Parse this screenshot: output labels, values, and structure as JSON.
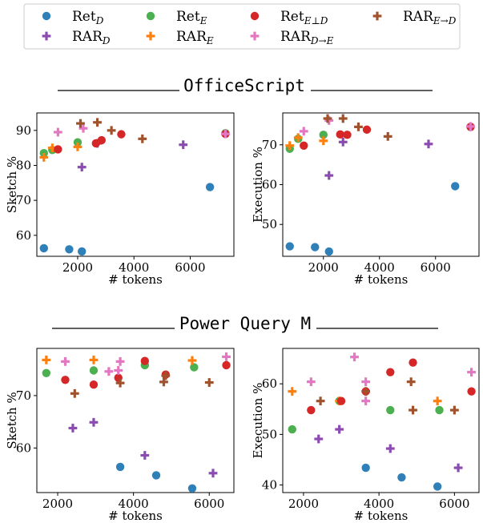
{
  "legend": {
    "items": [
      {
        "key": "ret_d",
        "base": "Ret",
        "sub": "D",
        "marker": "circle",
        "color": "#2f7fb8"
      },
      {
        "key": "rar_d",
        "base": "RAR",
        "sub": "D",
        "marker": "plus",
        "color": "#8b4bb0"
      },
      {
        "key": "ret_e",
        "base": "Ret",
        "sub": "E",
        "marker": "circle",
        "color": "#4caf50"
      },
      {
        "key": "rar_e",
        "base": "RAR",
        "sub": "E",
        "marker": "plus",
        "color": "#ff7f0e"
      },
      {
        "key": "ret_ed",
        "base": "Ret",
        "sub": "E⊥D",
        "marker": "circle",
        "color": "#d62728"
      },
      {
        "key": "rar_de",
        "base": "RAR",
        "sub": "D→E",
        "marker": "plus",
        "color": "#e377c2"
      },
      {
        "key": "rar_ed",
        "base": "RAR",
        "sub": "E→D",
        "marker": "plus",
        "color": "#a0522d"
      }
    ]
  },
  "sections": [
    {
      "title": "OfficeScript"
    },
    {
      "title": "Power Query M"
    }
  ],
  "chart_data": [
    {
      "type": "scatter",
      "section": "OfficeScript",
      "xlabel": "# tokens",
      "ylabel": "Sketch %",
      "xlim": [
        550,
        7550
      ],
      "ylim": [
        54,
        95
      ],
      "xticks": [
        2000,
        4000,
        6000
      ],
      "yticks": [
        60,
        70,
        80,
        90
      ],
      "grid": false,
      "series": [
        {
          "key": "ret_d",
          "points": [
            [
              800,
              56.3
            ],
            [
              1700,
              56.0
            ],
            [
              2150,
              55.4
            ],
            [
              6700,
              73.8
            ]
          ]
        },
        {
          "key": "rar_d",
          "points": [
            [
              2150,
              79.5
            ],
            [
              2700,
              86.3
            ],
            [
              5750,
              85.9
            ]
          ]
        },
        {
          "key": "ret_e",
          "points": [
            [
              800,
              83.5
            ],
            [
              1100,
              84.4
            ],
            [
              2000,
              86.6
            ],
            [
              7250,
              89.2
            ]
          ]
        },
        {
          "key": "rar_e",
          "points": [
            [
              800,
              82.3
            ],
            [
              1100,
              85.0
            ],
            [
              2000,
              85.3
            ]
          ]
        },
        {
          "key": "ret_ed",
          "points": [
            [
              1300,
              84.6
            ],
            [
              2650,
              86.3
            ],
            [
              2850,
              87.2
            ],
            [
              3550,
              88.9
            ],
            [
              7250,
              89.0
            ]
          ]
        },
        {
          "key": "rar_de",
          "points": [
            [
              1300,
              89.5
            ],
            [
              2200,
              90.6
            ],
            [
              7250,
              89.0
            ]
          ]
        },
        {
          "key": "rar_ed",
          "points": [
            [
              2100,
              92.0
            ],
            [
              2700,
              92.3
            ],
            [
              3200,
              90.0
            ],
            [
              4300,
              87.6
            ]
          ]
        }
      ]
    },
    {
      "type": "scatter",
      "section": "OfficeScript",
      "xlabel": "# tokens",
      "ylabel": "Execution %",
      "xlim": [
        550,
        7550
      ],
      "ylim": [
        42,
        78
      ],
      "xticks": [
        2000,
        4000,
        6000
      ],
      "yticks": [
        50,
        60,
        70
      ],
      "grid": false,
      "series": [
        {
          "key": "ret_d",
          "points": [
            [
              800,
              44.5
            ],
            [
              1700,
              44.3
            ],
            [
              2200,
              43.2
            ],
            [
              6700,
              59.6
            ]
          ]
        },
        {
          "key": "rar_d",
          "points": [
            [
              2200,
              62.3
            ],
            [
              2700,
              70.7
            ],
            [
              5750,
              70.2
            ]
          ]
        },
        {
          "key": "ret_e",
          "points": [
            [
              800,
              69.0
            ],
            [
              1100,
              71.5
            ],
            [
              2000,
              72.5
            ],
            [
              7250,
              74.5
            ]
          ]
        },
        {
          "key": "rar_e",
          "points": [
            [
              800,
              69.8
            ],
            [
              1100,
              71.8
            ],
            [
              2000,
              71.0
            ]
          ]
        },
        {
          "key": "ret_ed",
          "points": [
            [
              1300,
              69.8
            ],
            [
              2600,
              72.6
            ],
            [
              2850,
              72.5
            ],
            [
              3550,
              73.8
            ],
            [
              7250,
              74.5
            ]
          ]
        },
        {
          "key": "rar_de",
          "points": [
            [
              1300,
              73.4
            ],
            [
              2200,
              76.1
            ],
            [
              7250,
              74.6
            ]
          ]
        },
        {
          "key": "rar_ed",
          "points": [
            [
              2150,
              76.6
            ],
            [
              2700,
              76.6
            ],
            [
              3250,
              74.5
            ],
            [
              4300,
              72.1
            ]
          ]
        }
      ]
    },
    {
      "type": "scatter",
      "section": "Power Query M",
      "xlabel": "# tokens",
      "ylabel": "Sketch %",
      "xlim": [
        1450,
        6650
      ],
      "ylim": [
        51.5,
        79
      ],
      "xticks": [
        2000,
        4000,
        6000
      ],
      "yticks": [
        60,
        70
      ],
      "grid": false,
      "series": [
        {
          "key": "ret_d",
          "points": [
            [
              3650,
              56.4
            ],
            [
              4600,
              54.8
            ],
            [
              5550,
              52.3
            ]
          ]
        },
        {
          "key": "rar_d",
          "points": [
            [
              2400,
              63.8
            ],
            [
              2950,
              64.9
            ],
            [
              4300,
              58.6
            ],
            [
              6100,
              55.2
            ]
          ]
        },
        {
          "key": "ret_e",
          "points": [
            [
              1700,
              74.3
            ],
            [
              2950,
              74.8
            ],
            [
              4300,
              75.8
            ],
            [
              5600,
              75.4
            ]
          ]
        },
        {
          "key": "rar_e",
          "points": [
            [
              1700,
              76.8
            ],
            [
              2950,
              76.8
            ],
            [
              5550,
              76.7
            ]
          ]
        },
        {
          "key": "ret_ed",
          "points": [
            [
              2200,
              73.0
            ],
            [
              2950,
              72.1
            ],
            [
              3600,
              73.4
            ],
            [
              4300,
              76.6
            ],
            [
              4850,
              74.0
            ],
            [
              6450,
              75.8
            ]
          ]
        },
        {
          "key": "rar_de",
          "points": [
            [
              2200,
              76.5
            ],
            [
              3350,
              74.6
            ],
            [
              3650,
              76.5
            ],
            [
              3600,
              74.8
            ],
            [
              6450,
              77.4
            ]
          ]
        },
        {
          "key": "rar_ed",
          "points": [
            [
              2450,
              70.4
            ],
            [
              3650,
              72.4
            ],
            [
              4850,
              73.8
            ],
            [
              4800,
              72.6
            ],
            [
              6000,
              72.5
            ]
          ]
        }
      ]
    },
    {
      "type": "scatter",
      "section": "Power Query M",
      "xlabel": "# tokens",
      "ylabel": "Execution %",
      "xlim": [
        1450,
        6650
      ],
      "ylim": [
        38.5,
        67
      ],
      "xticks": [
        2000,
        4000,
        6000
      ],
      "yticks": [
        40,
        50,
        60
      ],
      "grid": false,
      "series": [
        {
          "key": "ret_d",
          "points": [
            [
              3650,
              43.4
            ],
            [
              4600,
              41.5
            ],
            [
              5550,
              39.7
            ]
          ]
        },
        {
          "key": "rar_d",
          "points": [
            [
              2400,
              49.1
            ],
            [
              2950,
              51.0
            ],
            [
              4300,
              47.2
            ],
            [
              6100,
              43.4
            ]
          ]
        },
        {
          "key": "ret_e",
          "points": [
            [
              1700,
              51.0
            ],
            [
              2950,
              56.6
            ],
            [
              4300,
              54.8
            ],
            [
              5600,
              54.8
            ]
          ]
        },
        {
          "key": "rar_e",
          "points": [
            [
              1700,
              58.5
            ],
            [
              2950,
              56.6
            ],
            [
              5550,
              56.6
            ]
          ]
        },
        {
          "key": "ret_ed",
          "points": [
            [
              2200,
              54.8
            ],
            [
              3000,
              56.6
            ],
            [
              3650,
              58.5
            ],
            [
              4300,
              62.3
            ],
            [
              4900,
              64.2
            ],
            [
              6450,
              58.5
            ]
          ]
        },
        {
          "key": "rar_de",
          "points": [
            [
              2200,
              60.4
            ],
            [
              3350,
              65.3
            ],
            [
              3650,
              60.4
            ],
            [
              3650,
              56.6
            ],
            [
              6450,
              62.3
            ]
          ]
        },
        {
          "key": "rar_ed",
          "points": [
            [
              2450,
              56.6
            ],
            [
              3650,
              58.5
            ],
            [
              4850,
              60.4
            ],
            [
              4900,
              54.8
            ],
            [
              6000,
              54.8
            ]
          ]
        }
      ]
    }
  ]
}
